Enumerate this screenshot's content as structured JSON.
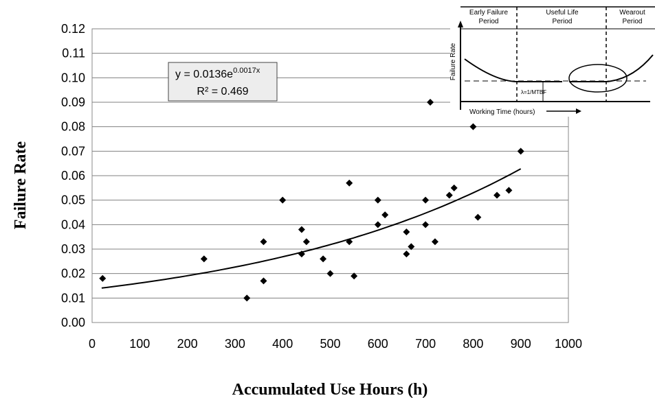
{
  "chart_data": {
    "type": "scatter",
    "xlabel": "Accumulated Use Hours (h)",
    "ylabel": "Failure Rate",
    "xlim": [
      0,
      1000
    ],
    "ylim": [
      0,
      0.12
    ],
    "xticks": [
      "0",
      "100",
      "200",
      "300",
      "400",
      "500",
      "600",
      "700",
      "800",
      "900",
      "1000"
    ],
    "yticks": [
      "0.00",
      "0.01",
      "0.02",
      "0.03",
      "0.04",
      "0.05",
      "0.06",
      "0.07",
      "0.08",
      "0.09",
      "0.10",
      "0.11",
      "0.12"
    ],
    "grid": "horizontal",
    "points": [
      {
        "x": 22,
        "y": 0.018
      },
      {
        "x": 235,
        "y": 0.026
      },
      {
        "x": 325,
        "y": 0.01
      },
      {
        "x": 360,
        "y": 0.033
      },
      {
        "x": 360,
        "y": 0.017
      },
      {
        "x": 400,
        "y": 0.05
      },
      {
        "x": 440,
        "y": 0.038
      },
      {
        "x": 440,
        "y": 0.028
      },
      {
        "x": 450,
        "y": 0.033
      },
      {
        "x": 485,
        "y": 0.026
      },
      {
        "x": 500,
        "y": 0.02
      },
      {
        "x": 540,
        "y": 0.057
      },
      {
        "x": 540,
        "y": 0.033
      },
      {
        "x": 550,
        "y": 0.019
      },
      {
        "x": 600,
        "y": 0.05
      },
      {
        "x": 600,
        "y": 0.04
      },
      {
        "x": 615,
        "y": 0.044
      },
      {
        "x": 660,
        "y": 0.037
      },
      {
        "x": 660,
        "y": 0.028
      },
      {
        "x": 670,
        "y": 0.031
      },
      {
        "x": 700,
        "y": 0.05
      },
      {
        "x": 700,
        "y": 0.04
      },
      {
        "x": 710,
        "y": 0.09
      },
      {
        "x": 720,
        "y": 0.033
      },
      {
        "x": 750,
        "y": 0.052
      },
      {
        "x": 760,
        "y": 0.055
      },
      {
        "x": 800,
        "y": 0.08
      },
      {
        "x": 810,
        "y": 0.043
      },
      {
        "x": 850,
        "y": 0.052
      },
      {
        "x": 875,
        "y": 0.054
      },
      {
        "x": 900,
        "y": 0.07
      }
    ],
    "trendline": {
      "type": "exponential",
      "a": 0.0136,
      "b": 0.0017,
      "x_range": [
        20,
        900
      ],
      "equation_prefix": "y = 0.0136e",
      "equation_exponent": "0.0017x",
      "r_squared": "R² = 0.469"
    }
  },
  "inset": {
    "title_early": [
      "Early Failure",
      "Period"
    ],
    "title_useful": [
      "Useful Life",
      "Period"
    ],
    "title_wearout": [
      "Wearout",
      "Period"
    ],
    "ylabel": "Failure Rate",
    "xlabel": "Working Time (hours)",
    "lambda_label": "λ=1/MTBF"
  }
}
